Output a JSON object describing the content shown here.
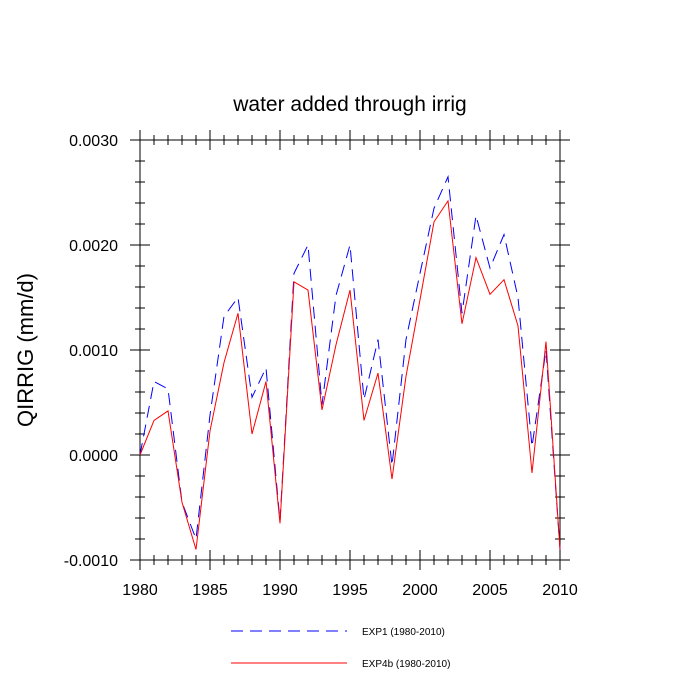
{
  "chart_data": {
    "type": "line",
    "title": "water added through irrig",
    "xlabel": "",
    "ylabel": "QIRRIG  (mm/d)",
    "xlim": [
      1980,
      2010
    ],
    "ylim": [
      -0.001,
      0.003
    ],
    "x_ticks": [
      1980,
      1985,
      1990,
      1995,
      2000,
      2005,
      2010
    ],
    "x_tick_labels": [
      "1980",
      "1985",
      "1990",
      "1995",
      "2000",
      "2005",
      "2010"
    ],
    "y_ticks": [
      -0.001,
      0.0,
      0.001,
      0.002,
      0.003
    ],
    "y_tick_labels": [
      "-0.0010",
      "0.0000",
      "0.0010",
      "0.0020",
      "0.0030"
    ],
    "grid": false,
    "legend_position": "bottom-center",
    "x": [
      1980,
      1981,
      1982,
      1983,
      1984,
      1985,
      1986,
      1987,
      1988,
      1989,
      1990,
      1991,
      1992,
      1993,
      1994,
      1995,
      1996,
      1997,
      1998,
      1999,
      2000,
      2001,
      2002,
      2003,
      2004,
      2005,
      2006,
      2007,
      2008,
      2009,
      2010
    ],
    "series": [
      {
        "name": "EXP1 (1980-2010)",
        "color": "#0000ff",
        "dash": "dashed",
        "values": [
          0.0,
          0.0007,
          0.00063,
          -0.00045,
          -0.0008,
          0.00038,
          0.00132,
          0.0015,
          0.00055,
          0.00083,
          -0.00063,
          0.00173,
          0.002,
          0.00048,
          0.00152,
          0.002,
          0.00053,
          0.0011,
          -0.0001,
          0.0011,
          0.00173,
          0.00235,
          0.00265,
          0.00135,
          0.00228,
          0.00178,
          0.0021,
          0.0015,
          8e-05,
          0.001,
          -0.0009
        ]
      },
      {
        "name": "EXP4b (1980-2010)",
        "color": "#ff0000",
        "dash": "solid",
        "values": [
          0.0,
          0.00033,
          0.00042,
          -0.00045,
          -0.0009,
          0.00023,
          0.00088,
          0.00135,
          0.0002,
          0.0007,
          -0.00065,
          0.00165,
          0.00157,
          0.00043,
          0.00105,
          0.00157,
          0.00033,
          0.00078,
          -0.00023,
          0.00075,
          0.00148,
          0.00222,
          0.00242,
          0.00125,
          0.00188,
          0.00153,
          0.00167,
          0.00123,
          -0.00017,
          0.00108,
          -0.0009
        ]
      }
    ]
  }
}
